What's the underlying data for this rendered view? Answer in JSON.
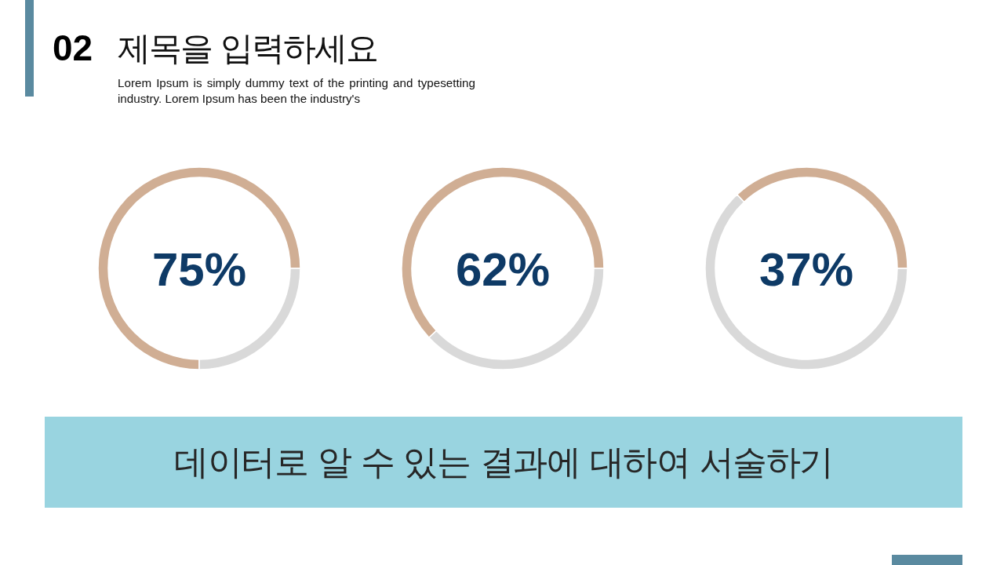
{
  "chart_data": [
    {
      "type": "other",
      "title": "제목을 입력하세요",
      "subtitle": "Lorem Ipsum is simply dummy text of the printing and typesetting industry. Lorem Ipsum has been the industry's",
      "annotations": [
        "02",
        "데이터로 알 수 있는 결과에 대하여 서술하기"
      ]
    },
    {
      "type": "donut",
      "categories": [
        null,
        null
      ],
      "values": [
        75,
        25
      ],
      "colors": [
        "#d0ae94",
        "#d9d9d9"
      ],
      "annotations": [
        "75%"
      ]
    },
    {
      "type": "donut",
      "categories": [
        null,
        null
      ],
      "values": [
        62,
        38
      ],
      "colors": [
        "#d0ae94",
        "#d9d9d9"
      ],
      "annotations": [
        "62%"
      ]
    },
    {
      "type": "donut",
      "categories": [
        null,
        null
      ],
      "values": [
        37,
        63
      ],
      "colors": [
        "#d0ae94",
        "#d9d9d9"
      ],
      "annotations": [
        "37%"
      ]
    }
  ]
}
